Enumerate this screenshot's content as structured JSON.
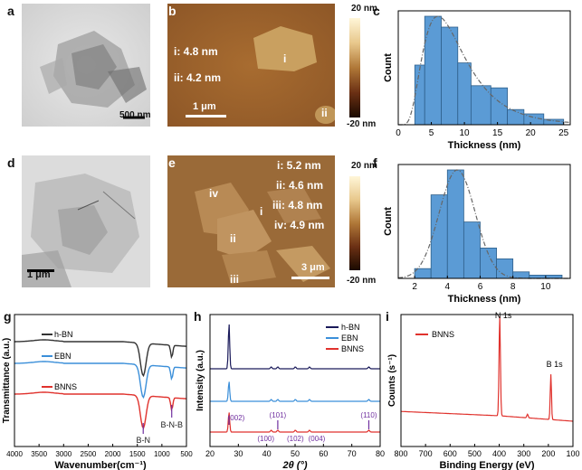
{
  "panels": {
    "a": {
      "label": "a",
      "scalebar": "500 nm"
    },
    "b": {
      "label": "b",
      "t1": "i:  4.8 nm",
      "t2": "ii: 4.2 nm",
      "scalebar": "1 μm",
      "r1": "i",
      "r2": "ii",
      "cb_top": "20 nm",
      "cb_bottom": "-20 nm"
    },
    "c": {
      "label": "c"
    },
    "d": {
      "label": "d",
      "scalebar": "1 μm"
    },
    "e": {
      "label": "e",
      "t1": "i: 5.2 nm",
      "t2": "ii: 4.6 nm",
      "t3": "iii: 4.8 nm",
      "t4": "iv: 4.9 nm",
      "r1": "i",
      "r2": "ii",
      "r3": "iii",
      "r4": "iv",
      "scalebar": "3 μm",
      "cb_top": "20 nm",
      "cb_bottom": "-20 nm"
    },
    "f": {
      "label": "f"
    },
    "g": {
      "label": "g"
    },
    "h": {
      "label": "h"
    },
    "i": {
      "label": "i"
    }
  },
  "chart_data": [
    {
      "id": "c",
      "type": "bar",
      "title": "",
      "xlabel": "Thickness (nm)",
      "ylabel": "Count",
      "xlim": [
        0,
        26
      ],
      "xticks": [
        0,
        5,
        10,
        15,
        20,
        25
      ],
      "ylim": [
        0,
        1.05
      ],
      "bins": [
        [
          2.5,
          4
        ],
        [
          4,
          6.5
        ],
        [
          6.5,
          9
        ],
        [
          9,
          11
        ],
        [
          11,
          14
        ],
        [
          14,
          16.5
        ],
        [
          16.5,
          19
        ],
        [
          19,
          22
        ],
        [
          22,
          25
        ]
      ],
      "values": [
        0.55,
        1.0,
        0.9,
        0.57,
        0.36,
        0.34,
        0.14,
        0.1,
        0.05
      ],
      "fit_type": "lognormal",
      "fit_peak": 6.0
    },
    {
      "id": "f",
      "type": "bar",
      "title": "",
      "xlabel": "Thickness (nm)",
      "ylabel": "Count",
      "xlim": [
        1,
        11.5
      ],
      "xticks": [
        2,
        4,
        6,
        8,
        10
      ],
      "ylim": [
        0,
        1.05
      ],
      "bins": [
        [
          2,
          3
        ],
        [
          3,
          4
        ],
        [
          4,
          5
        ],
        [
          5,
          6
        ],
        [
          6,
          7
        ],
        [
          7,
          8
        ],
        [
          8,
          9
        ],
        [
          9,
          11
        ]
      ],
      "values": [
        0.09,
        0.77,
        1.0,
        0.52,
        0.28,
        0.18,
        0.06,
        0.03
      ],
      "fit_type": "gaussian",
      "fit_center": 4.6,
      "fit_sigma": 1.1
    },
    {
      "id": "g",
      "type": "line",
      "title": "",
      "xlabel": "Wavenumber(cm⁻¹)",
      "ylabel": "Transmittance (a.u.)",
      "xlim": [
        4000,
        500
      ],
      "xticks": [
        4000,
        3500,
        3000,
        2500,
        2000,
        1500,
        1000,
        500
      ],
      "series": [
        {
          "name": "h-BN",
          "color": "#333333",
          "offset": 2.0
        },
        {
          "name": "EBN",
          "color": "#3b8fd9",
          "offset": 1.0
        },
        {
          "name": "BNNS",
          "color": "#e0322d",
          "offset": 0.0
        }
      ],
      "peaks": [
        {
          "pos": 1380,
          "depth": 0.8
        },
        {
          "pos": 800,
          "depth": 0.3
        }
      ],
      "annotations": [
        "B-N",
        "B-N-B"
      ]
    },
    {
      "id": "h",
      "type": "line",
      "title": "",
      "xlabel": "2θ (°)",
      "ylabel": "Intensity (a.u.)",
      "xlim": [
        20,
        80
      ],
      "xticks": [
        20,
        30,
        40,
        50,
        60,
        70,
        80
      ],
      "series": [
        {
          "name": "h-BN",
          "color": "#1a1a5a"
        },
        {
          "name": "EBN",
          "color": "#3b8fd9"
        },
        {
          "name": "BNNS",
          "color": "#e0322d"
        }
      ],
      "peaks": [
        26.7,
        41.6,
        43.9,
        50.1,
        55.1,
        76.0
      ],
      "annotations": [
        "(002)",
        "(101)",
        "(100)",
        "(102)",
        "(004)",
        "(110)"
      ]
    },
    {
      "id": "i",
      "type": "line",
      "title": "",
      "xlabel": "Binding Energy (eV)",
      "ylabel": "Counts (s⁻¹)",
      "xlim": [
        800,
        100
      ],
      "xticks": [
        800,
        700,
        600,
        500,
        400,
        300,
        200,
        100
      ],
      "series": [
        {
          "name": "BNNS",
          "color": "#e0322d"
        }
      ],
      "peaks": [
        {
          "pos": 398,
          "label": "N 1s"
        },
        {
          "pos": 190,
          "label": "B 1s"
        }
      ]
    }
  ]
}
